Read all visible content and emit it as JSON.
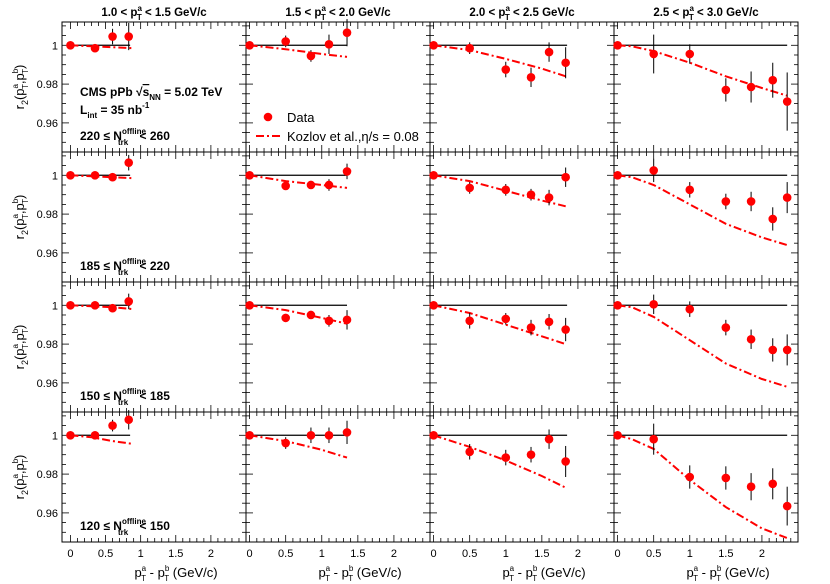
{
  "figure": {
    "ylabel_main": "r",
    "ylabel_sub": "2",
    "ylabel_args": "(p",
    "ylabel_end": ")",
    "xlabel_p": "p",
    "xlabel_a": "a",
    "xlabel_T": "T",
    "xlabel_minus": " - p",
    "xlabel_b": "b",
    "xlabel_unit": " (GeV/c)",
    "annotation_line1": "CMS pPb",
    "annotation_sqrt": "s",
    "annotation_nn": "NN",
    "annotation_energy": " = 5.02 TeV",
    "annotation_lumi": "L",
    "annotation_lumi_sub": "int",
    "annotation_lumi_val": " = 35 nb",
    "annotation_lumi_exp": "-1",
    "nlabel_N": "N",
    "nlabel_sup": "offline",
    "nlabel_sub": "trk",
    "legend_data": "Data",
    "legend_model": "Kozlov et al.,η/s = 0.08"
  },
  "chart_data": {
    "type": "scatter",
    "ylim": [
      0.945,
      1.012
    ],
    "yticks": [
      1,
      0.98,
      0.96
    ],
    "ytick_labels": [
      "1",
      "0.98",
      "0.96"
    ],
    "xtick_labels": [
      "0",
      "0.5",
      "1",
      "1.5",
      "2"
    ],
    "colors": {
      "data": "#ff0000",
      "model": "#ff0000",
      "reference": "#000000"
    },
    "columns": [
      {
        "title_low": "1.0 < p",
        "title_high": " < 1.5 GeV/c",
        "xlim": [
          -0.12,
          2.5
        ],
        "xmax_line": 0.85
      },
      {
        "title_low": "1.5 < p",
        "title_high": " < 2.0 GeV/c",
        "xlim": [
          -0.05,
          2.5
        ],
        "xmax_line": 1.35
      },
      {
        "title_low": "2.0 < p",
        "title_high": " < 2.5 GeV/c",
        "xlim": [
          -0.05,
          2.5
        ],
        "xmax_line": 1.85
      },
      {
        "title_low": "2.5 < p",
        "title_high": " < 3.0 GeV/c",
        "xlim": [
          -0.05,
          2.5
        ],
        "xmax_line": 2.35
      }
    ],
    "rows": [
      {
        "mult_low": "220 ≤ ",
        "mult_high": "< 260",
        "panels": [
          {
            "x": [
              0.0,
              0.35,
              0.6,
              0.83
            ],
            "y": [
              1.0,
              0.9985,
              1.0045,
              1.0045
            ],
            "err": [
              0.0,
              0.002,
              0.004,
              0.007
            ],
            "model_x": [
              0.0,
              0.3,
              0.6,
              0.9
            ],
            "model_y": [
              1.0,
              0.9995,
              0.999,
              0.9985
            ]
          },
          {
            "x": [
              0.0,
              0.5,
              0.85,
              1.1,
              1.35
            ],
            "y": [
              1.0,
              1.002,
              0.9945,
              1.0005,
              1.0065
            ],
            "err": [
              0.0,
              0.003,
              0.003,
              0.005,
              0.007
            ],
            "model_x": [
              0.0,
              0.5,
              1.0,
              1.35
            ],
            "model_y": [
              1.0,
              0.998,
              0.9955,
              0.994
            ]
          },
          {
            "x": [
              0.0,
              0.5,
              1.0,
              1.35,
              1.6,
              1.83
            ],
            "y": [
              1.0,
              0.9985,
              0.9875,
              0.9835,
              0.9965,
              0.991
            ],
            "err": [
              0.0,
              0.003,
              0.004,
              0.005,
              0.005,
              0.008
            ],
            "model_x": [
              0.0,
              0.5,
              1.0,
              1.5,
              1.83
            ],
            "model_y": [
              1.0,
              0.9975,
              0.993,
              0.988,
              0.984
            ]
          },
          {
            "x": [
              0.0,
              0.5,
              1.0,
              1.5,
              1.85,
              2.15,
              2.35
            ],
            "y": [
              1.0,
              0.9955,
              0.9955,
              0.977,
              0.9785,
              0.982,
              0.971
            ],
            "err": [
              0.0,
              0.01,
              0.005,
              0.006,
              0.008,
              0.009,
              0.015
            ],
            "model_x": [
              0.0,
              0.2,
              0.5,
              1.0,
              1.5,
              2.0,
              2.35
            ],
            "model_y": [
              1.0,
              0.9995,
              0.997,
              0.991,
              0.984,
              0.978,
              0.974
            ]
          }
        ]
      },
      {
        "mult_low": "185 ≤ ",
        "mult_high": "< 220",
        "panels": [
          {
            "x": [
              0.0,
              0.35,
              0.6,
              0.83
            ],
            "y": [
              1.0,
              1.0,
              0.999,
              1.0065
            ],
            "err": [
              0.0,
              0.001,
              0.002,
              0.004
            ],
            "model_x": [
              0.0,
              0.3,
              0.6,
              0.9
            ],
            "model_y": [
              1.0,
              0.9995,
              0.999,
              0.9985
            ]
          },
          {
            "x": [
              0.0,
              0.5,
              0.85,
              1.1,
              1.35
            ],
            "y": [
              1.0,
              0.9945,
              0.995,
              0.995,
              1.002
            ],
            "err": [
              0.0,
              0.002,
              0.002,
              0.003,
              0.004
            ],
            "model_x": [
              0.0,
              0.5,
              1.0,
              1.35
            ],
            "model_y": [
              1.0,
              0.997,
              0.995,
              0.9935
            ]
          },
          {
            "x": [
              0.0,
              0.5,
              1.0,
              1.35,
              1.6,
              1.83
            ],
            "y": [
              1.0,
              0.9935,
              0.9925,
              0.99,
              0.9885,
              0.999
            ],
            "err": [
              0.0,
              0.003,
              0.003,
              0.003,
              0.004,
              0.005
            ],
            "model_x": [
              0.0,
              0.5,
              1.0,
              1.5,
              1.83
            ],
            "model_y": [
              1.0,
              0.997,
              0.992,
              0.987,
              0.984
            ]
          },
          {
            "x": [
              0.0,
              0.5,
              1.0,
              1.5,
              1.85,
              2.15,
              2.35
            ],
            "y": [
              1.0,
              1.0025,
              0.9925,
              0.9865,
              0.9865,
              0.9775,
              0.9885
            ],
            "err": [
              0.0,
              0.006,
              0.004,
              0.004,
              0.005,
              0.006,
              0.008
            ],
            "model_x": [
              0.0,
              0.2,
              0.5,
              1.0,
              1.5,
              2.0,
              2.35
            ],
            "model_y": [
              1.0,
              0.999,
              0.995,
              0.985,
              0.975,
              0.968,
              0.964
            ]
          }
        ]
      },
      {
        "mult_low": "150 ≤ ",
        "mult_high": "< 185",
        "panels": [
          {
            "x": [
              0.0,
              0.35,
              0.6,
              0.83
            ],
            "y": [
              1.0,
              1.0,
              0.9985,
              1.002
            ],
            "err": [
              0.0,
              0.001,
              0.002,
              0.004
            ],
            "model_x": [
              0.0,
              0.3,
              0.6,
              0.9
            ],
            "model_y": [
              1.0,
              0.9995,
              0.999,
              0.998
            ]
          },
          {
            "x": [
              0.0,
              0.5,
              0.85,
              1.1,
              1.35
            ],
            "y": [
              1.0,
              0.9935,
              0.995,
              0.992,
              0.9925
            ],
            "err": [
              0.0,
              0.002,
              0.002,
              0.003,
              0.005
            ],
            "model_x": [
              0.0,
              0.5,
              1.0,
              1.35
            ],
            "model_y": [
              1.0,
              0.9975,
              0.9935,
              0.9905
            ]
          },
          {
            "x": [
              0.0,
              0.5,
              1.0,
              1.35,
              1.6,
              1.83
            ],
            "y": [
              1.0,
              0.992,
              0.993,
              0.9885,
              0.9915,
              0.9875
            ],
            "err": [
              0.0,
              0.004,
              0.003,
              0.004,
              0.004,
              0.006
            ],
            "model_x": [
              0.0,
              0.5,
              1.0,
              1.5,
              1.83
            ],
            "model_y": [
              1.0,
              0.996,
              0.99,
              0.984,
              0.98
            ]
          },
          {
            "x": [
              0.0,
              0.5,
              1.0,
              1.5,
              1.85,
              2.15,
              2.35
            ],
            "y": [
              1.0,
              1.0005,
              0.998,
              0.9885,
              0.9825,
              0.977,
              0.977
            ],
            "err": [
              0.0,
              0.005,
              0.004,
              0.004,
              0.005,
              0.006,
              0.008
            ],
            "model_x": [
              0.0,
              0.2,
              0.5,
              1.0,
              1.5,
              2.0,
              2.35
            ],
            "model_y": [
              1.0,
              0.999,
              0.994,
              0.982,
              0.97,
              0.962,
              0.958
            ]
          }
        ]
      },
      {
        "mult_low": "120 ≤ ",
        "mult_high": "< 150",
        "panels": [
          {
            "x": [
              0.0,
              0.35,
              0.6,
              0.83
            ],
            "y": [
              1.0,
              1.0,
              1.005,
              1.008
            ],
            "err": [
              0.0,
              0.002,
              0.003,
              0.005
            ],
            "model_x": [
              0.0,
              0.3,
              0.6,
              0.9
            ],
            "model_y": [
              1.0,
              0.999,
              0.997,
              0.9955
            ]
          },
          {
            "x": [
              0.0,
              0.5,
              0.85,
              1.1,
              1.35
            ],
            "y": [
              1.0,
              0.996,
              1.0,
              1.0,
              1.0015
            ],
            "err": [
              0.0,
              0.003,
              0.004,
              0.004,
              0.006
            ],
            "model_x": [
              0.0,
              0.5,
              1.0,
              1.35
            ],
            "model_y": [
              1.0,
              0.997,
              0.9925,
              0.9885
            ]
          },
          {
            "x": [
              0.0,
              0.5,
              1.0,
              1.35,
              1.6,
              1.83
            ],
            "y": [
              1.0,
              0.9915,
              0.9885,
              0.99,
              0.998,
              0.9865
            ],
            "err": [
              0.0,
              0.004,
              0.004,
              0.004,
              0.005,
              0.008
            ],
            "model_x": [
              0.0,
              0.5,
              1.0,
              1.5,
              1.83
            ],
            "model_y": [
              1.0,
              0.994,
              0.987,
              0.979,
              0.973
            ]
          },
          {
            "x": [
              0.0,
              0.5,
              1.0,
              1.5,
              1.85,
              2.15,
              2.35
            ],
            "y": [
              1.0,
              0.998,
              0.9785,
              0.978,
              0.9735,
              0.975,
              0.9635
            ],
            "err": [
              0.0,
              0.008,
              0.006,
              0.006,
              0.007,
              0.008,
              0.01
            ],
            "model_x": [
              0.0,
              0.2,
              0.5,
              1.0,
              1.5,
              2.0,
              2.35
            ],
            "model_y": [
              1.0,
              0.998,
              0.993,
              0.977,
              0.963,
              0.952,
              0.947
            ]
          }
        ]
      }
    ]
  }
}
